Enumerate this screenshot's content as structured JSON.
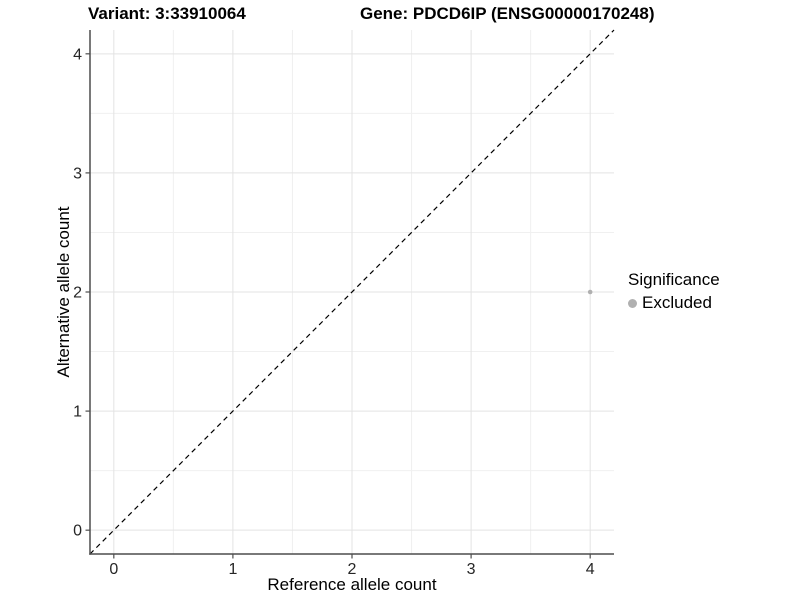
{
  "header": {
    "variant_title": "Variant: 3:33910064",
    "gene_title": "Gene: PDCD6IP (ENSG00000170248)"
  },
  "chart_data": {
    "type": "scatter",
    "title": "",
    "xlabel": "Reference allele count",
    "ylabel": "Alternative allele count",
    "xlim": [
      -0.2,
      4.2
    ],
    "ylim": [
      -0.2,
      4.2
    ],
    "x_ticks": [
      0,
      1,
      2,
      3,
      4
    ],
    "y_ticks": [
      0,
      1,
      2,
      3,
      4
    ],
    "minor_ticks": [
      0.5,
      1.5,
      2.5,
      3.5
    ],
    "grid": true,
    "reference_line": {
      "type": "diagonal",
      "slope": 1,
      "intercept": 0,
      "style": "dashed",
      "color": "#000000"
    },
    "series": [
      {
        "name": "Excluded",
        "color": "#b0b0b0",
        "points": [
          {
            "x": 4,
            "y": 2
          }
        ]
      }
    ],
    "legend": {
      "title": "Significance",
      "position": "right",
      "entries": [
        {
          "label": "Excluded",
          "color": "#b0b0b0"
        }
      ]
    }
  },
  "colors": {
    "background": "#ffffff",
    "grid_major": "#e3e3e3",
    "grid_minor": "#f0f0f0",
    "axis_line": "#4d4d4d",
    "tick_text": "#262626",
    "point": "#b0b0b0"
  }
}
